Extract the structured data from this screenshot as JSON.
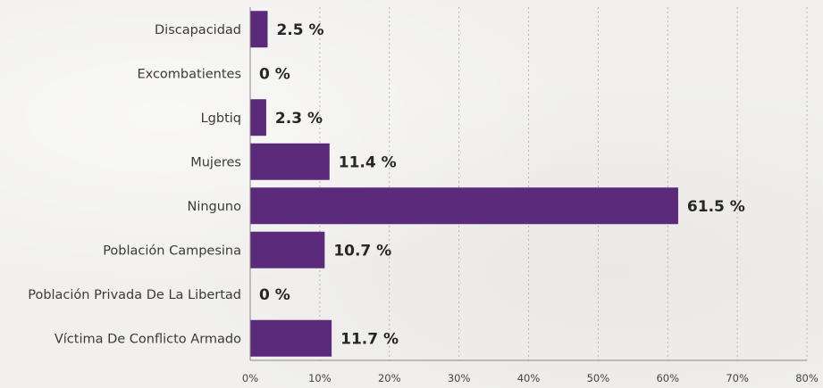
{
  "chart_data": {
    "type": "bar",
    "orientation": "horizontal",
    "categories": [
      "Discapacidad",
      "Excombatientes",
      "Lgbtiq",
      "Mujeres",
      "Ninguno",
      "Población Campesina",
      "Población Privada De La Libertad",
      "Víctima De Conflicto Armado"
    ],
    "values": [
      2.5,
      0,
      2.3,
      11.4,
      61.5,
      10.7,
      0,
      11.7
    ],
    "value_labels": [
      "2.5 %",
      "0 %",
      "2.3 %",
      "11.4 %",
      "61.5 %",
      "10.7 %",
      "0 %",
      "11.7 %"
    ],
    "xlim": [
      0,
      80
    ],
    "x_ticks": [
      0,
      10,
      20,
      30,
      40,
      50,
      60,
      70,
      80
    ],
    "x_tick_labels": [
      "0%",
      "10%",
      "20%",
      "30%",
      "40%",
      "50%",
      "60%",
      "70%",
      "80%"
    ],
    "title": "",
    "xlabel": "",
    "ylabel": "",
    "grid": true,
    "legend": "none",
    "bar_color": "#5b2a7a",
    "grid_color": "#b8b6b3",
    "axis_color": "#8a8886"
  }
}
